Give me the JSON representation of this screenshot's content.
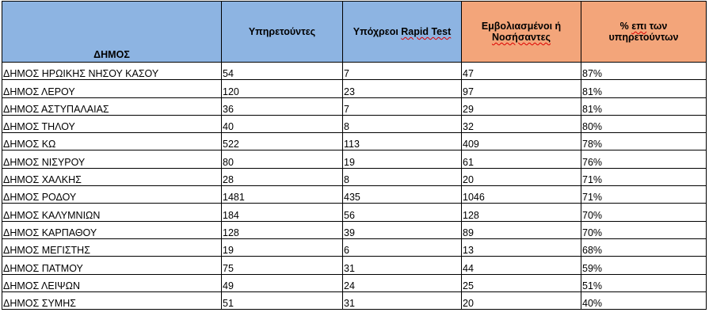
{
  "colors": {
    "header_blue": "#8db4e2",
    "header_orange": "#f3a57a"
  },
  "headers": {
    "dimos": "ΔΗΜΟΣ",
    "serving": "Υπηρετούντες",
    "rapid_prefix": "Υπόχρεοι ",
    "rapid_suffix": "Rapid Test",
    "vacc_line1": "Εμβολιασμένοι ή",
    "vacc_line2": "Νοσήσαντες",
    "pct_prefix": "% ",
    "pct_word": "επι",
    "pct_rest": " των",
    "pct_line2": "υπηρετούντων"
  },
  "rows": [
    [
      "ΔΗΜΟΣ ΗΡΩΙΚΗΣ ΝΗΣΟΥ ΚΑΣΟΥ",
      "54",
      "7",
      "47",
      "87%"
    ],
    [
      "ΔΗΜΟΣ ΛΕΡΟΥ",
      "120",
      "23",
      "97",
      "81%"
    ],
    [
      "ΔΗΜΟΣ ΑΣΤΥΠΑΛΑΙΑΣ",
      "36",
      "7",
      "29",
      "81%"
    ],
    [
      "ΔΗΜΟΣ ΤΗΛΟΥ",
      "40",
      "8",
      "32",
      "80%"
    ],
    [
      "ΔΗΜΟΣ ΚΩ",
      "522",
      "113",
      "409",
      "78%"
    ],
    [
      "ΔΗΜΟΣ ΝΙΣΥΡΟΥ",
      "80",
      "19",
      "61",
      "76%"
    ],
    [
      "ΔΗΜΟΣ ΧΑΛΚΗΣ",
      "28",
      "8",
      "20",
      "71%"
    ],
    [
      "ΔΗΜΟΣ ΡΟΔΟΥ",
      "1481",
      "435",
      "1046",
      "71%"
    ],
    [
      "ΔΗΜΟΣ ΚΑΛΥΜΝΙΩΝ",
      "184",
      "56",
      "128",
      "70%"
    ],
    [
      "ΔΗΜΟΣ ΚΑΡΠΑΘΟΥ",
      "128",
      "39",
      "89",
      "70%"
    ],
    [
      "ΔΗΜΟΣ ΜΕΓΙΣΤΗΣ",
      "19",
      "6",
      "13",
      "68%"
    ],
    [
      "ΔΗΜΟΣ ΠΑΤΜΟΥ",
      "75",
      "31",
      "44",
      "59%"
    ],
    [
      "ΔΗΜΟΣ ΛΕΙΨΩΝ",
      "49",
      "24",
      "25",
      "51%"
    ],
    [
      "ΔΗΜΟΣ ΣΥΜΗΣ",
      "51",
      "31",
      "20",
      "40%"
    ]
  ]
}
